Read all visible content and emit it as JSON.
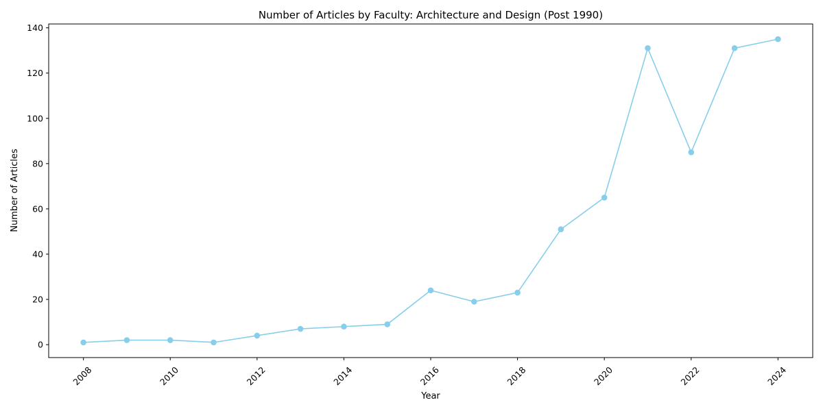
{
  "chart_data": {
    "type": "line",
    "title": "Number of Articles by Faculty: Architecture and Design (Post 1990)",
    "xlabel": "Year",
    "ylabel": "Number of Articles",
    "x": [
      2008,
      2009,
      2010,
      2011,
      2012,
      2013,
      2014,
      2015,
      2016,
      2017,
      2018,
      2019,
      2020,
      2021,
      2022,
      2023,
      2024
    ],
    "series": [
      {
        "values": [
          1,
          2,
          2,
          1,
          4,
          7,
          8,
          9,
          24,
          19,
          23,
          51,
          65,
          131,
          85,
          131,
          135
        ]
      }
    ],
    "xticks": [
      "2008",
      "2010",
      "2012",
      "2014",
      "2016",
      "2018",
      "2020",
      "2022",
      "2024"
    ],
    "yticks": [
      "0",
      "20",
      "40",
      "60",
      "80",
      "100",
      "120",
      "140"
    ],
    "xlim": [
      2007.2,
      2024.8
    ],
    "ylim": [
      -5.7,
      141.7
    ],
    "x_tick_rotation": 45,
    "grid": false,
    "legend": "none",
    "colors": {
      "line": "#87ceeb",
      "marker": "#87ceeb",
      "axes": "#000000"
    }
  }
}
